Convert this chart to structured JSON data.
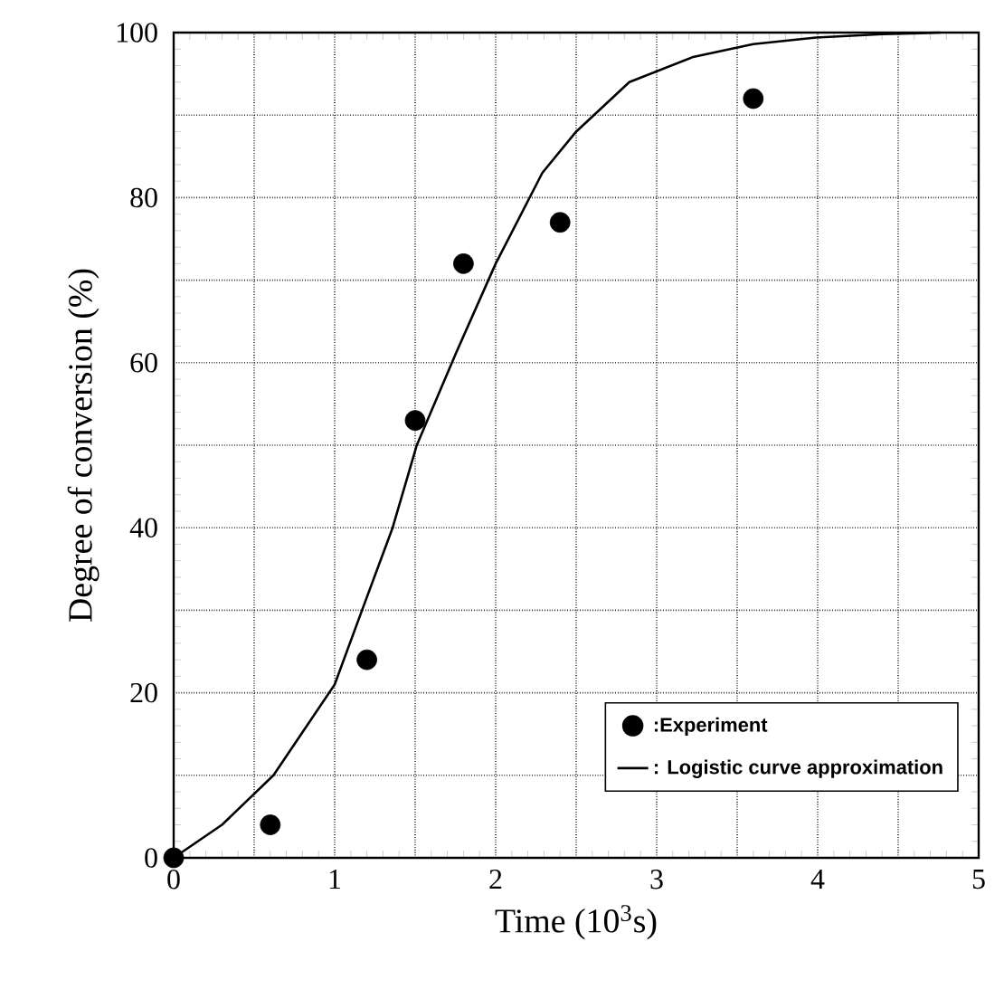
{
  "chart_data": {
    "type": "scatter",
    "xlabel": "Time (10$^{3}$s)",
    "ylabel": "Degree of conversion (%)",
    "xlim": [
      0,
      5
    ],
    "ylim": [
      0,
      100
    ],
    "xticks": [
      0,
      {
        "value": 0.5,
        "label": null
      },
      1,
      {
        "value": 1.5,
        "label": null
      },
      2,
      {
        "value": 2.5,
        "label": null
      },
      3,
      {
        "value": 3.5,
        "label": null
      },
      4,
      {
        "value": 4.5,
        "label": null
      },
      5
    ],
    "yticks": [
      0,
      {
        "value": 10,
        "label": null
      },
      20,
      {
        "value": 30,
        "label": null
      },
      40,
      {
        "value": 50,
        "label": null
      },
      60,
      {
        "value": 70,
        "label": null
      },
      80,
      {
        "value": 90,
        "label": null
      },
      100
    ],
    "grid": true,
    "legend": "bottom right",
    "series": [
      {
        "name": ":Experiment",
        "type": "scatter",
        "marker": "circle",
        "color": "#000000",
        "x": [
          0,
          0.6,
          1.2,
          1.5,
          1.8,
          2.4,
          3.6
        ],
        "values": [
          0,
          4,
          24,
          53,
          72,
          77,
          92
        ]
      },
      {
        "name": ": Logistic curve approximation",
        "type": "line",
        "marker": "none",
        "line_style": "solid",
        "color": "#000000",
        "x": [
          0,
          0.3,
          0.62,
          1.0,
          1.17,
          1.36,
          1.51,
          1.75,
          2.0,
          2.29,
          2.5,
          2.83,
          3.22,
          3.6,
          3.99,
          4.4,
          4.76
        ],
        "values": [
          0,
          4,
          10,
          21,
          30,
          40,
          50,
          61,
          72,
          83,
          88,
          94,
          97,
          98.6,
          99.4,
          99.8,
          100
        ]
      }
    ]
  }
}
